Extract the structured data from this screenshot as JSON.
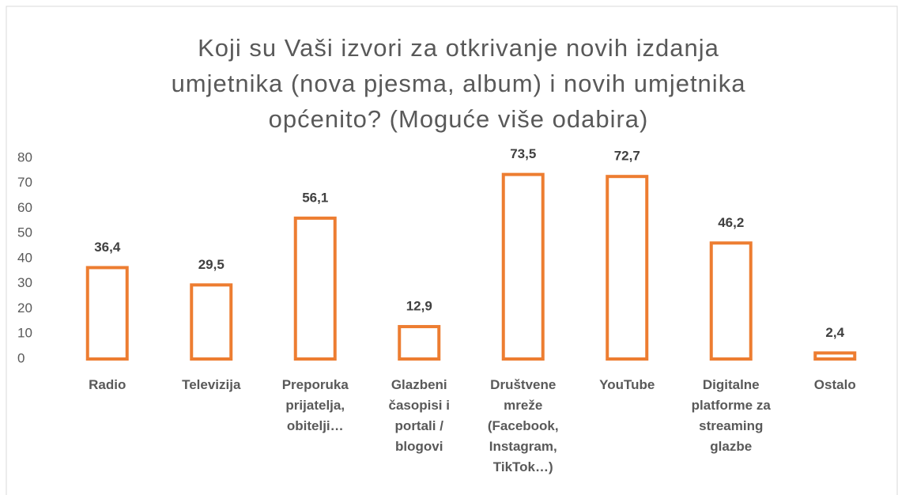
{
  "chart_data": {
    "type": "bar",
    "title": "Koji su Vaši izvori za otkrivanje novih izdanja umjetnika (nova pjesma, album) i novih umjetnika općenito? (Moguće više odabira)",
    "categories": [
      "Radio",
      "Televizija",
      "Preporuka prijatelja, obitelji…",
      "Glazbeni časopisi i portali / blogovi",
      "Društvene mreže (Facebook, Instagram, TikTok…)",
      "YouTube",
      "Digitalne platforme za streaming glazbe",
      "Ostalo"
    ],
    "values": [
      36.4,
      29.5,
      56.1,
      12.9,
      73.5,
      72.7,
      46.2,
      2.4
    ],
    "value_labels": [
      "36,4",
      "29,5",
      "56,1",
      "12,9",
      "73,5",
      "72,7",
      "46,2",
      "2,4"
    ],
    "color": "#ed7d31",
    "ylim": [
      0,
      80
    ],
    "yticks": [
      0,
      10,
      20,
      30,
      40,
      50,
      60,
      70,
      80
    ],
    "grid": false
  }
}
